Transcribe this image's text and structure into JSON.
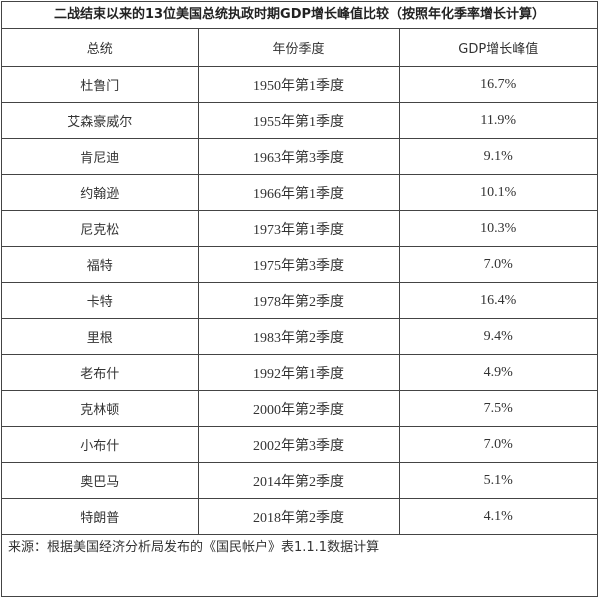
{
  "title": "二战结束以来的13位美国总统执政时期GDP增长峰值比较（按照年化季率增长计算）",
  "columns": {
    "president": "总统",
    "period": "年份季度",
    "peak": "GDP增长峰值"
  },
  "rows": [
    {
      "president": "杜鲁门",
      "period": "1950年第1季度",
      "peak": "16.7%"
    },
    {
      "president": "艾森豪威尔",
      "period": "1955年第1季度",
      "peak": "11.9%"
    },
    {
      "president": "肯尼迪",
      "period": "1963年第3季度",
      "peak": "9.1%"
    },
    {
      "president": "约翰逊",
      "period": "1966年第1季度",
      "peak": "10.1%"
    },
    {
      "president": "尼克松",
      "period": "1973年第1季度",
      "peak": "10.3%"
    },
    {
      "president": "福特",
      "period": "1975年第3季度",
      "peak": "7.0%"
    },
    {
      "president": "卡特",
      "period": "1978年第2季度",
      "peak": "16.4%"
    },
    {
      "president": "里根",
      "period": "1983年第2季度",
      "peak": "9.4%"
    },
    {
      "president": "老布什",
      "period": "1992年第1季度",
      "peak": "4.9%"
    },
    {
      "president": "克林顿",
      "period": "2000年第2季度",
      "peak": "7.5%"
    },
    {
      "president": "小布什",
      "period": "2002年第3季度",
      "peak": "7.0%"
    },
    {
      "president": "奥巴马",
      "period": "2014年第2季度",
      "peak": "5.1%"
    },
    {
      "president": "特朗普",
      "period": "2018年第2季度",
      "peak": "4.1%"
    }
  ],
  "source": "来源：根据美国经济分析局发布的《国民帐户》表1.1.1数据计算"
}
